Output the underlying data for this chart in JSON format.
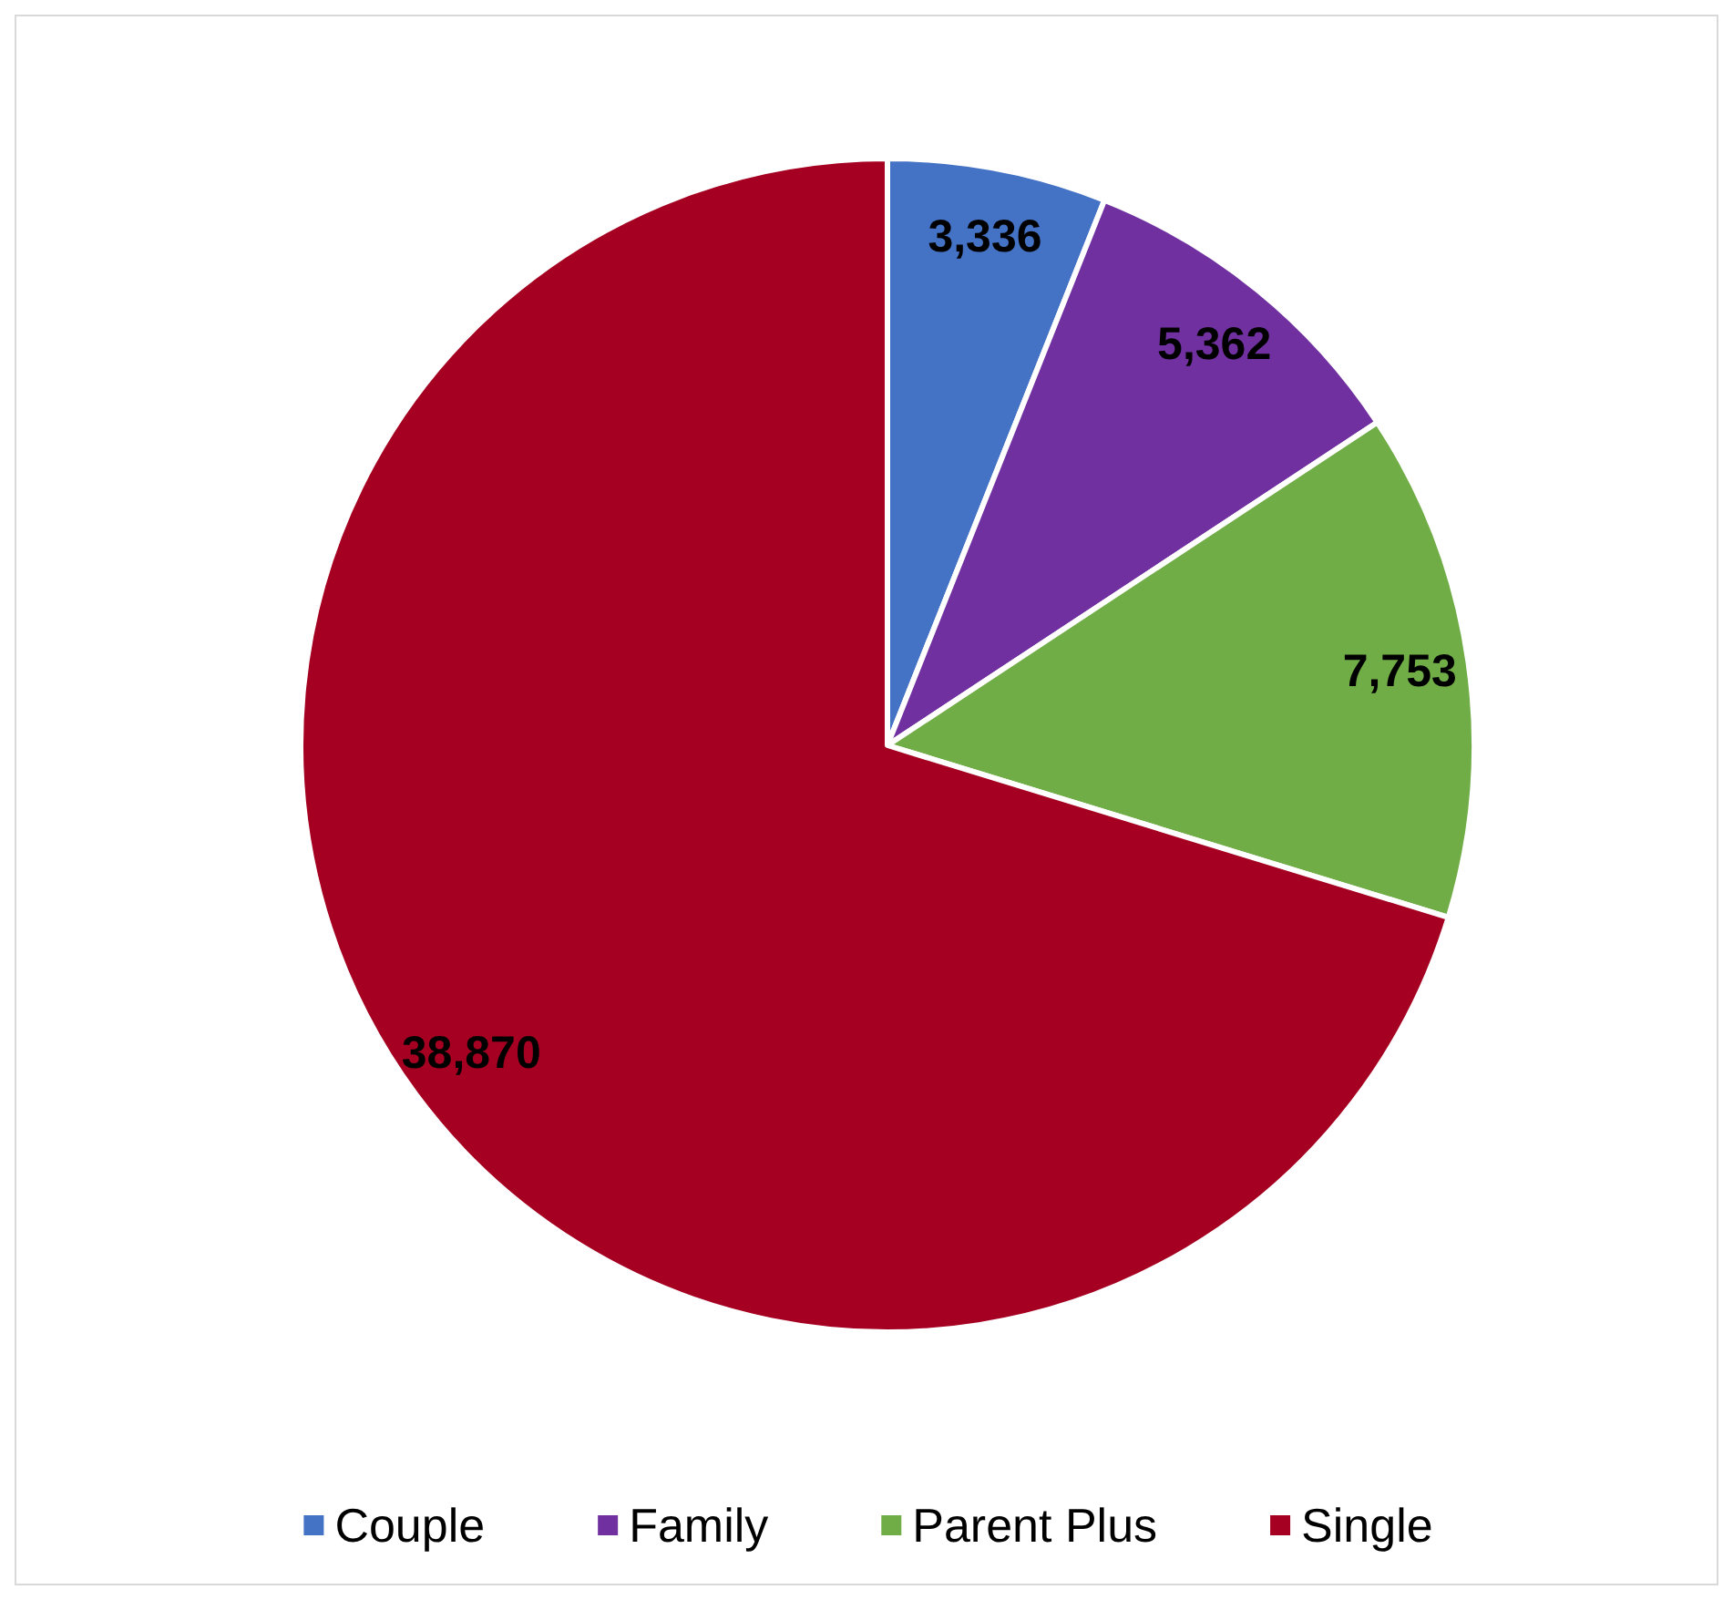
{
  "chart_data": {
    "type": "pie",
    "categories": [
      "Couple",
      "Family",
      "Parent Plus",
      "Single"
    ],
    "values": [
      3336,
      5362,
      7753,
      38870
    ],
    "colors": [
      "#4472c4",
      "#7030a0",
      "#70ad47",
      "#a50021"
    ],
    "value_labels": [
      "3,336",
      "5,362",
      "7,753",
      "38,870"
    ],
    "legend": "bottom"
  }
}
